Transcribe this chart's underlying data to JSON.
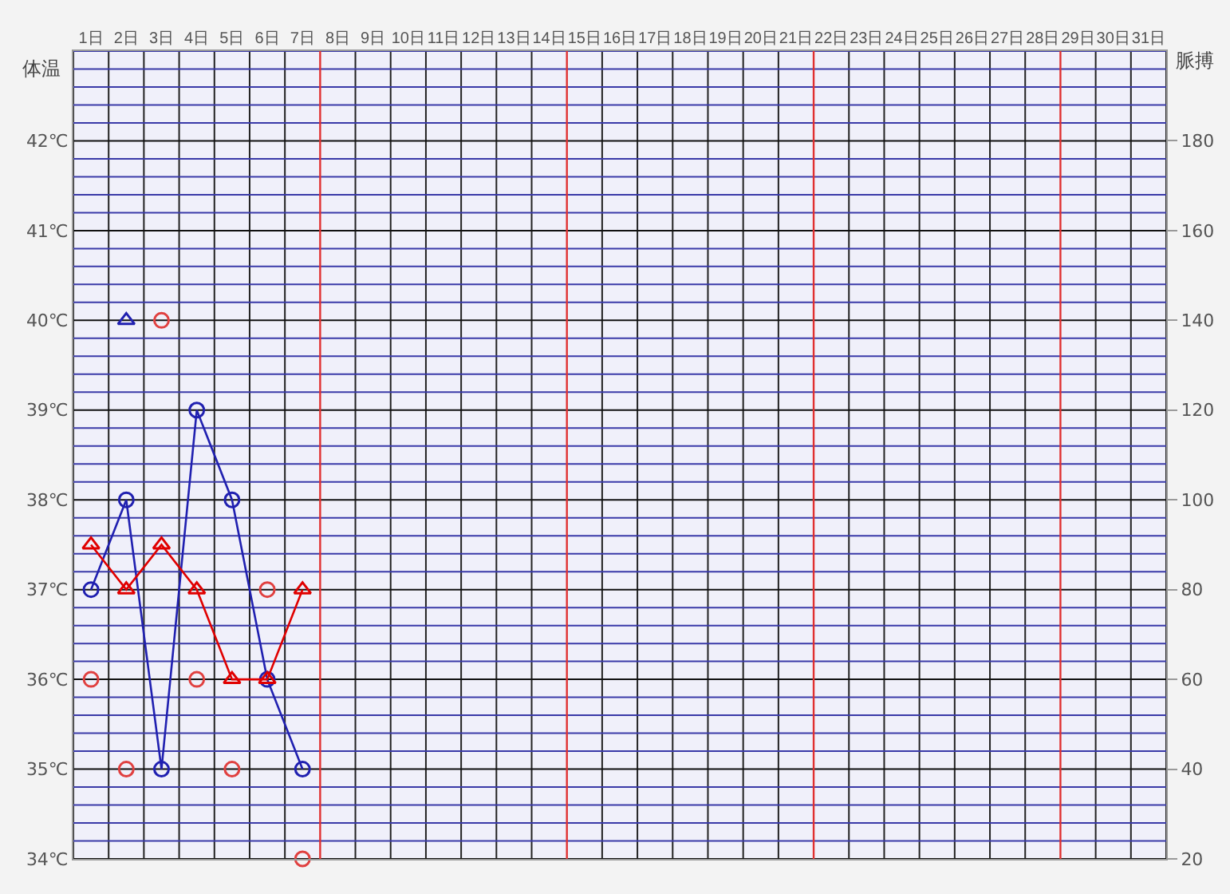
{
  "chart_data": {
    "type": "line",
    "ylabel": "体温",
    "y2label": "脈搏",
    "x": [
      1,
      2,
      3,
      4,
      5,
      6,
      7
    ],
    "xlim": [
      0.5,
      31.5
    ],
    "xticks": [
      {
        "value": 0.5,
        "label": null
      },
      {
        "value": 1,
        "label": "1日"
      },
      {
        "value": 1.5,
        "label": null
      },
      {
        "value": 2,
        "label": "2日"
      },
      {
        "value": 2.5,
        "label": null
      },
      {
        "value": 3,
        "label": "3日"
      },
      {
        "value": 3.5,
        "label": null
      },
      {
        "value": 4,
        "label": "4日"
      },
      {
        "value": 4.5,
        "label": null
      },
      {
        "value": 5,
        "label": "5日"
      },
      {
        "value": 5.5,
        "label": null
      },
      {
        "value": 6,
        "label": "6日"
      },
      {
        "value": 6.5,
        "label": null
      },
      {
        "value": 7,
        "label": "7日"
      },
      {
        "value": 8,
        "label": "8日"
      },
      {
        "value": 8.5,
        "label": null
      },
      {
        "value": 9,
        "label": "9日"
      },
      {
        "value": 9.5,
        "label": null
      },
      {
        "value": 10,
        "label": "10日"
      },
      {
        "value": 10.5,
        "label": null
      },
      {
        "value": 11,
        "label": "11日"
      },
      {
        "value": 11.5,
        "label": null
      },
      {
        "value": 12,
        "label": "12日"
      },
      {
        "value": 12.5,
        "label": null
      },
      {
        "value": 13,
        "label": "13日"
      },
      {
        "value": 13.5,
        "label": null
      },
      {
        "value": 14,
        "label": "14日"
      },
      {
        "value": 15,
        "label": "15日"
      },
      {
        "value": 15.5,
        "label": null
      },
      {
        "value": 16,
        "label": "16日"
      },
      {
        "value": 16.5,
        "label": null
      },
      {
        "value": 17,
        "label": "17日"
      },
      {
        "value": 17.5,
        "label": null
      },
      {
        "value": 18,
        "label": "18日"
      },
      {
        "value": 18.5,
        "label": null
      },
      {
        "value": 19,
        "label": "19日"
      },
      {
        "value": 19.5,
        "label": null
      },
      {
        "value": 20,
        "label": "20日"
      },
      {
        "value": 20.5,
        "label": null
      },
      {
        "value": 21,
        "label": "21日"
      },
      {
        "value": 22,
        "label": "22日"
      },
      {
        "value": 22.5,
        "label": null
      },
      {
        "value": 23,
        "label": "23日"
      },
      {
        "value": 23.5,
        "label": null
      },
      {
        "value": 24,
        "label": "24日"
      },
      {
        "value": 24.5,
        "label": null
      },
      {
        "value": 25,
        "label": "25日"
      },
      {
        "value": 25.5,
        "label": null
      },
      {
        "value": 26,
        "label": "26日"
      },
      {
        "value": 26.5,
        "label": null
      },
      {
        "value": 27,
        "label": "27日"
      },
      {
        "value": 27.5,
        "label": null
      },
      {
        "value": 28,
        "label": "28日"
      },
      {
        "value": 29,
        "label": "29日"
      },
      {
        "value": 29.5,
        "label": null
      },
      {
        "value": 30,
        "label": "30日"
      },
      {
        "value": 30.5,
        "label": null
      },
      {
        "value": 31,
        "label": "31日"
      },
      {
        "value": 31.5,
        "label": null
      }
    ],
    "ylim": [
      34,
      43
    ],
    "yticks": [
      {
        "value": 34,
        "label": "34℃"
      },
      {
        "value": 34.2,
        "label": null
      },
      {
        "value": 34.4,
        "label": null
      },
      {
        "value": 34.6,
        "label": null
      },
      {
        "value": 34.8,
        "label": null
      },
      {
        "value": 35,
        "label": "35℃"
      },
      {
        "value": 35.2,
        "label": null
      },
      {
        "value": 35.4,
        "label": null
      },
      {
        "value": 35.6,
        "label": null
      },
      {
        "value": 35.8,
        "label": null
      },
      {
        "value": 36,
        "label": "36℃"
      },
      {
        "value": 36.2,
        "label": null
      },
      {
        "value": 36.4,
        "label": null
      },
      {
        "value": 36.6,
        "label": null
      },
      {
        "value": 36.8,
        "label": null
      },
      {
        "value": 37,
        "label": "37℃"
      },
      {
        "value": 37.2,
        "label": null
      },
      {
        "value": 37.4,
        "label": null
      },
      {
        "value": 37.6,
        "label": null
      },
      {
        "value": 37.8,
        "label": null
      },
      {
        "value": 38,
        "label": "38℃"
      },
      {
        "value": 38.2,
        "label": null
      },
      {
        "value": 38.4,
        "label": null
      },
      {
        "value": 38.6,
        "label": null
      },
      {
        "value": 38.8,
        "label": null
      },
      {
        "value": 39,
        "label": "39℃"
      },
      {
        "value": 39.2,
        "label": null
      },
      {
        "value": 39.4,
        "label": null
      },
      {
        "value": 39.6,
        "label": null
      },
      {
        "value": 39.8,
        "label": null
      },
      {
        "value": 40,
        "label": "40℃"
      },
      {
        "value": 40.2,
        "label": null
      },
      {
        "value": 40.4,
        "label": null
      },
      {
        "value": 40.6,
        "label": null
      },
      {
        "value": 40.8,
        "label": null
      },
      {
        "value": 41,
        "label": "41℃"
      },
      {
        "value": 41.2,
        "label": null
      },
      {
        "value": 41.4,
        "label": null
      },
      {
        "value": 41.6,
        "label": null
      },
      {
        "value": 41.8,
        "label": null
      },
      {
        "value": 42,
        "label": "42℃"
      },
      {
        "value": 42.2,
        "label": null
      },
      {
        "value": 42.4,
        "label": null
      },
      {
        "value": 42.6,
        "label": null
      },
      {
        "value": 42.8,
        "label": null
      },
      {
        "value": 43,
        "label": null
      }
    ],
    "y2lim": [
      20,
      200
    ],
    "y2ticks": [
      20,
      40,
      60,
      80,
      100,
      120,
      140,
      160,
      180
    ],
    "grid": true,
    "ref_lines": [
      {
        "axis": "x",
        "value": 7.5,
        "color": "#e03030"
      },
      {
        "axis": "x",
        "value": 14.5,
        "color": "#e03030"
      },
      {
        "axis": "x",
        "value": 21.5,
        "color": "#e03030"
      },
      {
        "axis": "x",
        "value": 28.5,
        "color": "#e03030"
      }
    ],
    "series": [
      {
        "color": "#2020b0",
        "marker": "circle",
        "values": [
          37,
          38,
          35,
          39,
          38,
          36,
          35
        ]
      },
      {
        "color": "#e00000",
        "marker": "triangle",
        "axis": "y2",
        "values": [
          90,
          80,
          90,
          80,
          60,
          60,
          80
        ]
      },
      {
        "type": "scatter",
        "color": "#e04040",
        "marker": "circle",
        "values": [
          36,
          35,
          40,
          36,
          35,
          37,
          34
        ]
      },
      {
        "type": "scatter",
        "color": "#2020b0",
        "marker": "triangle",
        "x": [
          2
        ],
        "values": [
          40
        ]
      }
    ]
  }
}
